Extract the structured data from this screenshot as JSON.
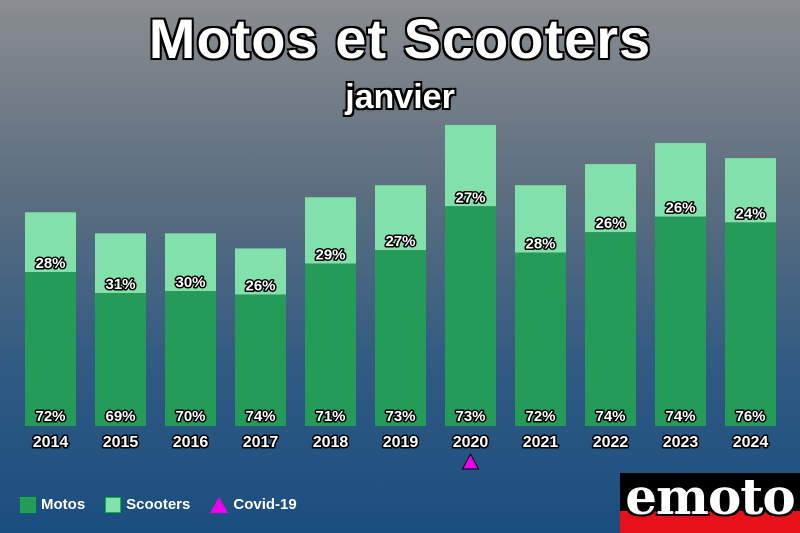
{
  "colors": {
    "motos": "#259b59",
    "scooters": "#82e0aa",
    "covid": "#ee00ee"
  },
  "legend": {
    "motos": "Motos",
    "scooters": "Scooters",
    "covid": "Covid-19"
  },
  "logo": {
    "text": "emoto"
  },
  "chart_data": {
    "type": "bar",
    "stacked": true,
    "title": "Motos et Scooters",
    "subtitle": "janvier",
    "categories": [
      "2014",
      "2015",
      "2016",
      "2017",
      "2018",
      "2019",
      "2020",
      "2021",
      "2022",
      "2023",
      "2024"
    ],
    "totals_relative": [
      71,
      64,
      64,
      59,
      76,
      80,
      100,
      80,
      87,
      94,
      89
    ],
    "series": [
      {
        "name": "Motos",
        "values": [
          72,
          69,
          70,
          74,
          71,
          73,
          73,
          72,
          74,
          74,
          76
        ],
        "labels": [
          "72%",
          "69%",
          "70%",
          "74%",
          "71%",
          "73%",
          "73%",
          "72%",
          "74%",
          "74%",
          "76%"
        ]
      },
      {
        "name": "Scooters",
        "values": [
          28,
          31,
          30,
          26,
          29,
          27,
          27,
          28,
          26,
          26,
          24
        ],
        "labels": [
          "28%",
          "31%",
          "30%",
          "26%",
          "29%",
          "27%",
          "27%",
          "28%",
          "26%",
          "26%",
          "24%"
        ]
      }
    ],
    "marker": {
      "name": "Covid-19",
      "category": "2020",
      "shape": "triangle"
    },
    "grid": false,
    "legend_position": "bottom-left"
  }
}
